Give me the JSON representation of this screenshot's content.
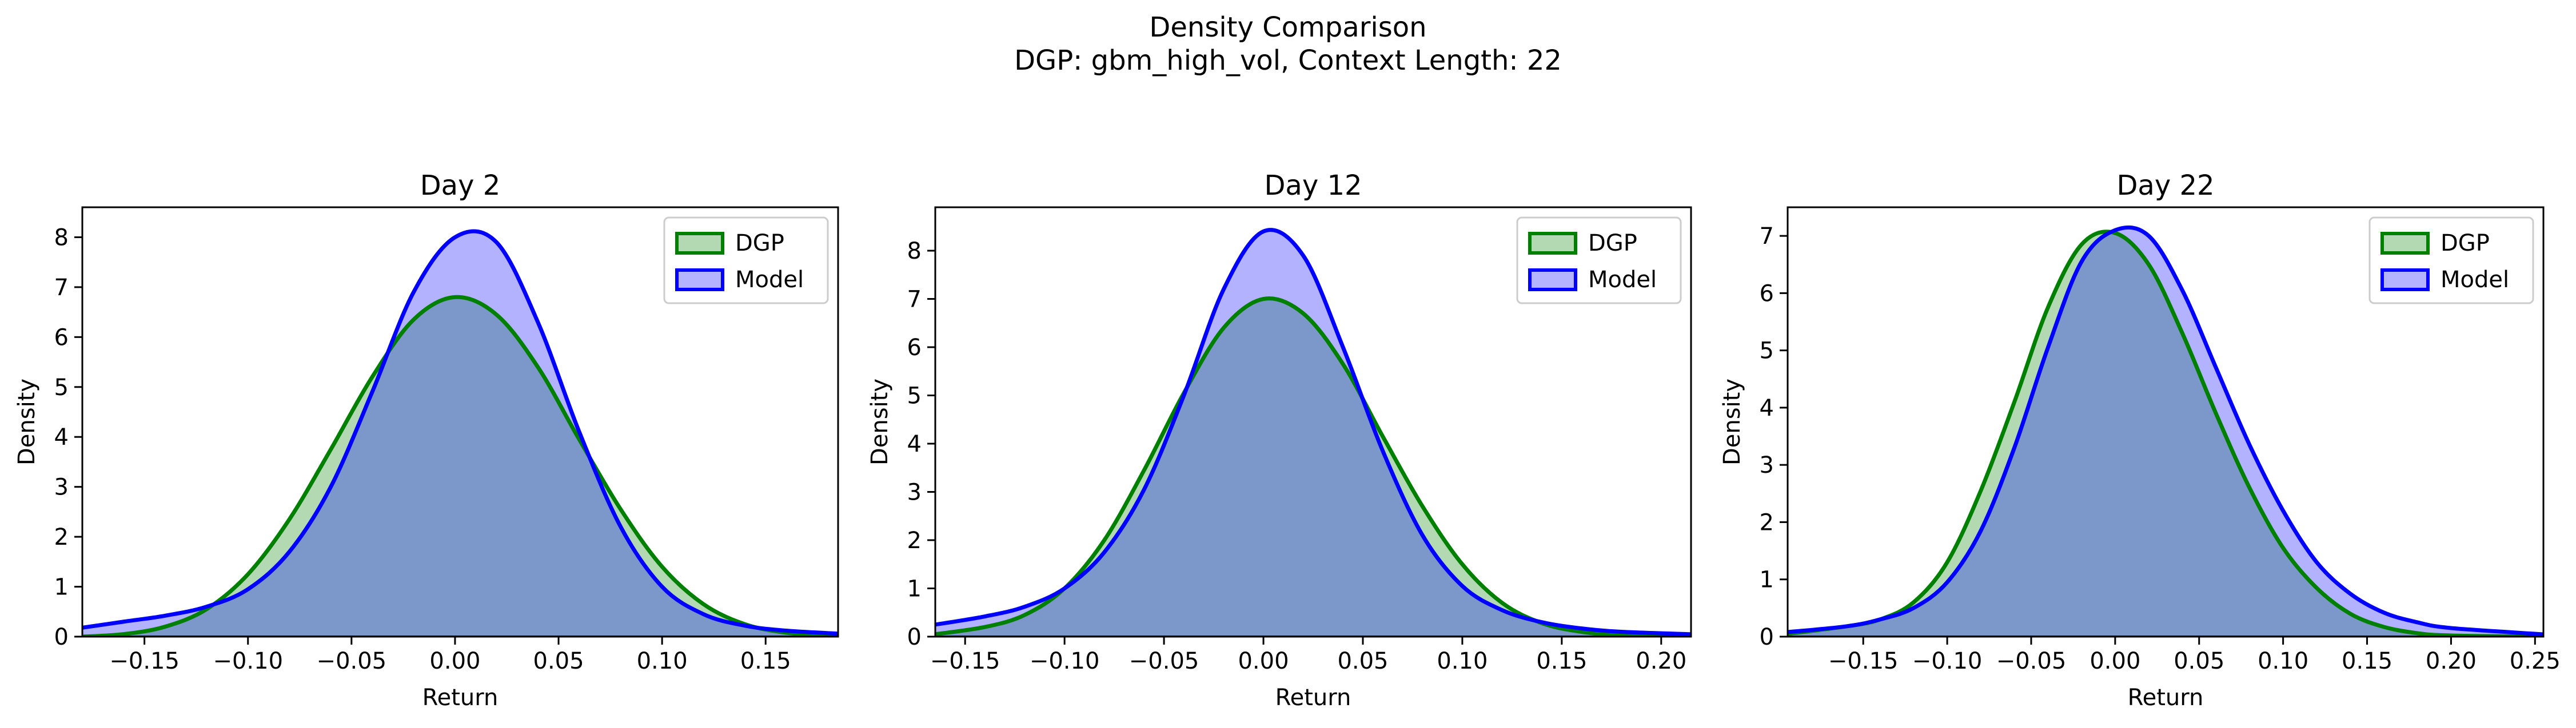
{
  "figure": {
    "title_line1": "Density Comparison",
    "title_line2": "DGP: gbm_high_vol, Context Length: 22"
  },
  "colors": {
    "dgp_line": "#008000",
    "dgp_fill": "#b3d9b3",
    "model_line": "#0000ff",
    "model_fill": "#b3b3ff",
    "overlap_fill": "#7f99c8"
  },
  "chart_data": [
    {
      "type": "area",
      "title": "Day 2",
      "xlabel": "Return",
      "ylabel": "Density",
      "xlim": [
        -0.18,
        0.185
      ],
      "ylim": [
        0,
        8.6
      ],
      "xticks": [
        -0.15,
        -0.1,
        -0.05,
        0.0,
        0.05,
        0.1,
        0.15
      ],
      "xtick_labels": [
        "−0.15",
        "−0.10",
        "−0.05",
        "0.00",
        "0.05",
        "0.10",
        "0.15"
      ],
      "yticks": [
        0,
        1,
        2,
        3,
        4,
        5,
        6,
        7,
        8
      ],
      "ytick_labels": [
        "0",
        "1",
        "2",
        "3",
        "4",
        "5",
        "6",
        "7",
        "8"
      ],
      "legend": "top-right",
      "series": [
        {
          "name": "DGP",
          "x": [
            -0.18,
            -0.16,
            -0.14,
            -0.12,
            -0.1,
            -0.08,
            -0.06,
            -0.04,
            -0.02,
            0.0,
            0.02,
            0.04,
            0.06,
            0.08,
            0.1,
            0.12,
            0.14,
            0.16,
            0.185
          ],
          "y": [
            0.0,
            0.05,
            0.2,
            0.55,
            1.25,
            2.35,
            3.75,
            5.2,
            6.35,
            6.8,
            6.45,
            5.4,
            3.95,
            2.55,
            1.4,
            0.65,
            0.25,
            0.08,
            0.0
          ]
        },
        {
          "name": "Model",
          "x": [
            -0.18,
            -0.16,
            -0.14,
            -0.12,
            -0.1,
            -0.08,
            -0.06,
            -0.04,
            -0.02,
            0.0,
            0.02,
            0.04,
            0.06,
            0.08,
            0.1,
            0.12,
            0.14,
            0.16,
            0.185
          ],
          "y": [
            0.18,
            0.3,
            0.42,
            0.6,
            0.95,
            1.7,
            3.0,
            4.9,
            6.9,
            8.0,
            7.9,
            6.3,
            4.1,
            2.2,
            1.0,
            0.45,
            0.22,
            0.12,
            0.06
          ]
        }
      ]
    },
    {
      "type": "area",
      "title": "Day 12",
      "xlabel": "Return",
      "ylabel": "Density",
      "xlim": [
        -0.165,
        0.215
      ],
      "ylim": [
        0,
        8.9
      ],
      "xticks": [
        -0.15,
        -0.1,
        -0.05,
        0.0,
        0.05,
        0.1,
        0.15,
        0.2
      ],
      "xtick_labels": [
        "−0.15",
        "−0.10",
        "−0.05",
        "0.00",
        "0.05",
        "0.10",
        "0.15",
        "0.20"
      ],
      "yticks": [
        0,
        1,
        2,
        3,
        4,
        5,
        6,
        7,
        8
      ],
      "ytick_labels": [
        "0",
        "1",
        "2",
        "3",
        "4",
        "5",
        "6",
        "7",
        "8"
      ],
      "legend": "top-right",
      "series": [
        {
          "name": "DGP",
          "x": [
            -0.165,
            -0.14,
            -0.12,
            -0.1,
            -0.08,
            -0.06,
            -0.04,
            -0.02,
            0.0,
            0.02,
            0.04,
            0.06,
            0.08,
            0.1,
            0.12,
            0.14,
            0.16,
            0.18,
            0.215
          ],
          "y": [
            0.05,
            0.2,
            0.45,
            1.0,
            2.0,
            3.45,
            5.05,
            6.4,
            7.0,
            6.7,
            5.65,
            4.15,
            2.7,
            1.5,
            0.7,
            0.28,
            0.1,
            0.03,
            0.0
          ]
        },
        {
          "name": "Model",
          "x": [
            -0.165,
            -0.14,
            -0.12,
            -0.1,
            -0.08,
            -0.06,
            -0.04,
            -0.02,
            0.0,
            0.02,
            0.04,
            0.06,
            0.08,
            0.1,
            0.12,
            0.14,
            0.16,
            0.18,
            0.215
          ],
          "y": [
            0.25,
            0.42,
            0.62,
            1.0,
            1.75,
            3.05,
            5.0,
            7.2,
            8.4,
            7.9,
            6.0,
            3.85,
            2.1,
            1.05,
            0.55,
            0.3,
            0.17,
            0.1,
            0.05
          ]
        }
      ]
    },
    {
      "type": "area",
      "title": "Day 22",
      "xlabel": "Return",
      "ylabel": "Density",
      "xlim": [
        -0.195,
        0.255
      ],
      "ylim": [
        0,
        7.5
      ],
      "xticks": [
        -0.15,
        -0.1,
        -0.05,
        0.0,
        0.05,
        0.1,
        0.15,
        0.2,
        0.25
      ],
      "xtick_labels": [
        "−0.15",
        "−0.10",
        "−0.05",
        "0.00",
        "0.05",
        "0.10",
        "0.15",
        "0.20",
        "0.25"
      ],
      "yticks": [
        0,
        1,
        2,
        3,
        4,
        5,
        6,
        7
      ],
      "ytick_labels": [
        "0",
        "1",
        "2",
        "3",
        "4",
        "5",
        "6",
        "7"
      ],
      "legend": "top-right",
      "series": [
        {
          "name": "DGP",
          "x": [
            -0.195,
            -0.16,
            -0.14,
            -0.12,
            -0.1,
            -0.08,
            -0.06,
            -0.04,
            -0.02,
            0.0,
            0.02,
            0.04,
            0.06,
            0.08,
            0.1,
            0.12,
            0.14,
            0.16,
            0.18,
            0.2,
            0.255
          ],
          "y": [
            0.05,
            0.18,
            0.3,
            0.6,
            1.3,
            2.55,
            4.1,
            5.75,
            6.85,
            7.05,
            6.5,
            5.3,
            3.9,
            2.6,
            1.55,
            0.85,
            0.4,
            0.17,
            0.06,
            0.02,
            0.0
          ]
        },
        {
          "name": "Model",
          "x": [
            -0.195,
            -0.16,
            -0.14,
            -0.12,
            -0.1,
            -0.08,
            -0.06,
            -0.04,
            -0.02,
            0.0,
            0.02,
            0.04,
            0.06,
            0.08,
            0.1,
            0.12,
            0.14,
            0.16,
            0.18,
            0.2,
            0.255
          ],
          "y": [
            0.08,
            0.18,
            0.3,
            0.5,
            0.95,
            1.85,
            3.3,
            5.05,
            6.55,
            7.1,
            7.0,
            6.05,
            4.7,
            3.35,
            2.2,
            1.3,
            0.75,
            0.42,
            0.25,
            0.15,
            0.04
          ]
        }
      ]
    }
  ]
}
